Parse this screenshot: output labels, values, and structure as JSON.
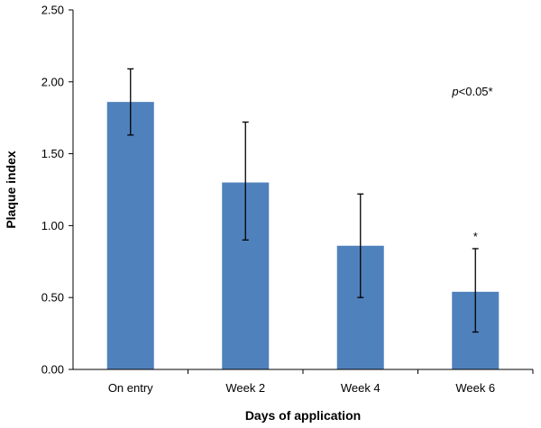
{
  "chart_data": {
    "type": "bar",
    "title": "",
    "xlabel": "Days of application",
    "ylabel": "Plaque index",
    "categories": [
      "On entry",
      "Week 2",
      "Week 4",
      "Week 6"
    ],
    "values": [
      1.86,
      1.3,
      0.86,
      0.54
    ],
    "error_upper": [
      2.09,
      1.72,
      1.22,
      0.84
    ],
    "error_lower": [
      1.63,
      0.9,
      0.5,
      0.26
    ],
    "ylim": [
      0,
      2.5
    ],
    "yticks": [
      0,
      0.5,
      1.0,
      1.5,
      2.0,
      2.5
    ],
    "ytick_labels": [
      "0.00",
      "0.50",
      "1.00",
      "1.50",
      "2.00",
      "2.50"
    ],
    "bar_color": "#4f81bd",
    "grid": false,
    "legend": "none",
    "significance_marker": {
      "category": "Week 6",
      "text": "*"
    },
    "annotation": {
      "italic": "p",
      "rest": "<0.05*"
    }
  }
}
